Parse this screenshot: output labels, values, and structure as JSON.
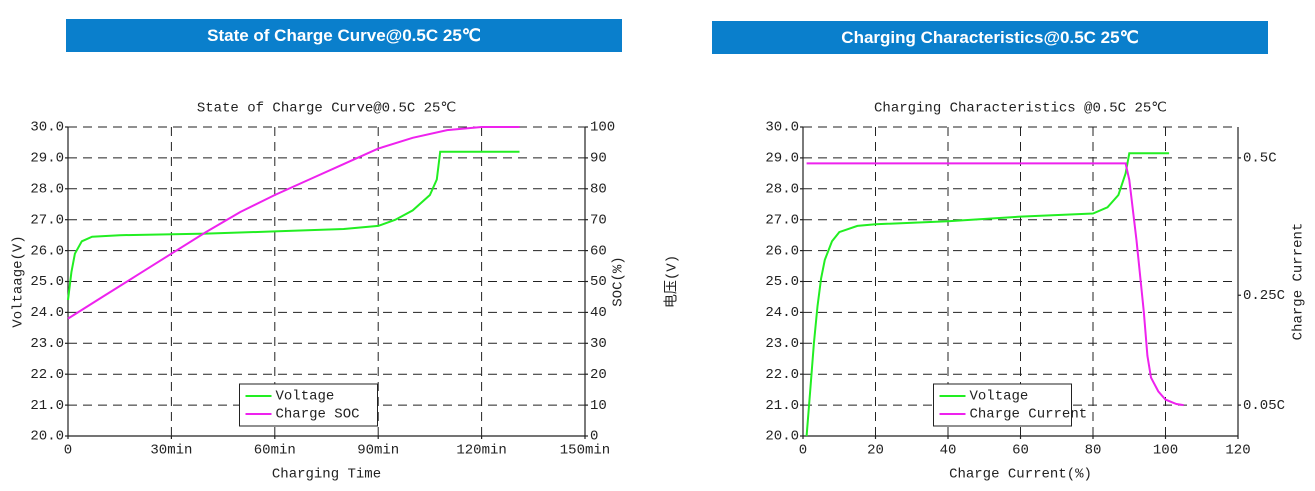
{
  "banners": [
    "State of Charge Curve@0.5C 25℃",
    "Charging Characteristics@0.5C 25℃"
  ],
  "chart_data": [
    {
      "type": "line",
      "title": "State of Charge Curve@0.5C 25℃",
      "x_label": "Charging Time",
      "y_label": "Voltaage(V)",
      "y2_label": "SOC(%)",
      "xlim": [
        0,
        150
      ],
      "xticks": [
        0,
        {
          "value": 30,
          "label": "30min"
        },
        {
          "value": 60,
          "label": "60min"
        },
        {
          "value": 90,
          "label": "90min"
        },
        {
          "value": 120,
          "label": "120min"
        },
        {
          "value": 150,
          "label": "150min"
        }
      ],
      "ylim": [
        20,
        30
      ],
      "yticks": [
        {
          "value": 20,
          "label": "20.0"
        },
        {
          "value": 21,
          "label": "21.0"
        },
        {
          "value": 22,
          "label": "22.0"
        },
        {
          "value": 23,
          "label": "23.0"
        },
        {
          "value": 24,
          "label": "24.0"
        },
        {
          "value": 25,
          "label": "25.0"
        },
        {
          "value": 26,
          "label": "26.0"
        },
        {
          "value": 27,
          "label": "27.0"
        },
        {
          "value": 28,
          "label": "28.0"
        },
        {
          "value": 29,
          "label": "29.0"
        },
        {
          "value": 30,
          "label": "30.0"
        }
      ],
      "y2lim": [
        0,
        100
      ],
      "y2ticks": [
        0,
        10,
        20,
        30,
        40,
        50,
        60,
        70,
        80,
        90,
        100
      ],
      "grid": true,
      "legend": "lower center",
      "series": [
        {
          "name": "Voltage",
          "color": "#22ee22",
          "x": [
            0,
            1,
            2,
            4,
            7,
            15,
            40,
            60,
            80,
            90,
            95,
            100,
            105,
            107,
            108,
            120,
            131
          ],
          "values": [
            24.4,
            25.3,
            25.9,
            26.3,
            26.45,
            26.5,
            26.55,
            26.62,
            26.7,
            26.8,
            27.0,
            27.3,
            27.8,
            28.3,
            29.2,
            29.2,
            29.2
          ]
        },
        {
          "name": "Charge SOC",
          "color": "#ee22ee",
          "axis": "y2",
          "x": [
            0,
            10,
            20,
            30,
            40,
            50,
            60,
            70,
            80,
            90,
            100,
            110,
            120,
            131
          ],
          "values": [
            38,
            45,
            52,
            59,
            66,
            72.5,
            78,
            83,
            88,
            93,
            96.5,
            99,
            100,
            100
          ]
        }
      ]
    },
    {
      "type": "line",
      "title": "Charging Characteristics @0.5C 25℃",
      "x_label": "Charge Current(%)",
      "y_label": "电压(V)",
      "y2_label": "Charge Current",
      "xlim": [
        0,
        120
      ],
      "xticks": [
        0,
        20,
        40,
        60,
        80,
        100,
        120
      ],
      "ylim": [
        20,
        30
      ],
      "yticks": [
        {
          "value": 20,
          "label": "20.0"
        },
        {
          "value": 21,
          "label": "21.0"
        },
        {
          "value": 22,
          "label": "22.0"
        },
        {
          "value": 23,
          "label": "23.0"
        },
        {
          "value": 24,
          "label": "24.0"
        },
        {
          "value": 25,
          "label": "25.0"
        },
        {
          "value": 26,
          "label": "26.0"
        },
        {
          "value": 27,
          "label": "27.0"
        },
        {
          "value": 28,
          "label": "28.0"
        },
        {
          "value": 29,
          "label": "29.0"
        },
        {
          "value": 30,
          "label": "30.0"
        }
      ],
      "y2lim": [
        -0.00625,
        0.55625
      ],
      "y2ticks": [
        {
          "value": 0.05,
          "label": "0.05C"
        },
        {
          "value": 0.25,
          "label": "0.25C"
        },
        {
          "value": 0.5,
          "label": "0.5C"
        }
      ],
      "grid": true,
      "legend": "lower center",
      "series": [
        {
          "name": "Voltage",
          "color": "#22ee22",
          "x": [
            1,
            2,
            3,
            4,
            5,
            6,
            8,
            10,
            15,
            20,
            40,
            60,
            80,
            84,
            87,
            89,
            90,
            101
          ],
          "values": [
            20.0,
            21.5,
            23.0,
            24.2,
            25.1,
            25.7,
            26.3,
            26.6,
            26.8,
            26.85,
            26.95,
            27.1,
            27.2,
            27.4,
            27.8,
            28.5,
            29.15,
            29.15
          ]
        },
        {
          "name": "Charge Current",
          "color": "#ee22ee",
          "axis": "y2",
          "x": [
            1,
            89,
            90,
            92,
            94,
            95,
            96,
            98,
            100,
            103,
            105
          ],
          "values": [
            0.49,
            0.49,
            0.46,
            0.35,
            0.22,
            0.14,
            0.1,
            0.075,
            0.06,
            0.052,
            0.05
          ]
        }
      ]
    }
  ]
}
